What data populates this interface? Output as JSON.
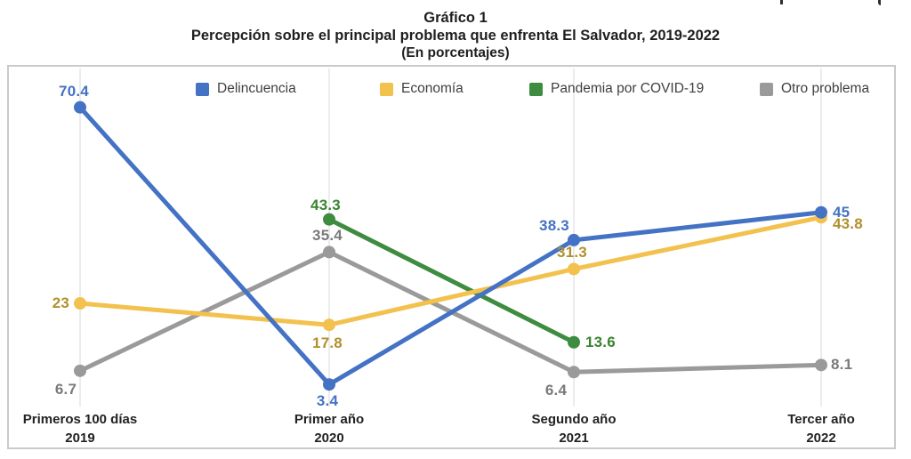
{
  "title": {
    "line1": "Gráfico 1",
    "line2": "Percepción sobre el principal problema que enfrenta El Salvador, 2019-2022",
    "line3": "(En porcentajes)"
  },
  "chart_data": {
    "type": "line",
    "title": "Percepción sobre el principal problema que enfrenta El Salvador, 2019-2022",
    "subtitle": "(En porcentajes)",
    "ylabel": "",
    "xlabel": "",
    "ylim": [
      0,
      80
    ],
    "grid": "vertical-only",
    "legend_position": "top",
    "categories": [
      {
        "label": "Primeros 100 días",
        "year": "2019"
      },
      {
        "label": "Primer año",
        "year": "2020"
      },
      {
        "label": "Segundo año",
        "year": "2021"
      },
      {
        "label": "Tercer año",
        "year": "2022"
      }
    ],
    "series": [
      {
        "name": "Delincuencia",
        "color": "#4472C4",
        "label_color": "#4472C4",
        "points": [
          {
            "category_index": 0,
            "value": 70.4,
            "label": "70.4",
            "label_pos": "above",
            "dx": -7,
            "dy": 0
          },
          {
            "category_index": 1,
            "value": 3.4,
            "label": "3.4",
            "label_pos": "below",
            "dx": -2,
            "dy": -2
          },
          {
            "category_index": 2,
            "value": 38.3,
            "label": "38.3",
            "label_pos": "above",
            "dx": -22,
            "dy": 2
          },
          {
            "category_index": 3,
            "value": 45,
            "label": "45",
            "label_pos": "right",
            "dx": 0,
            "dy": 0
          }
        ]
      },
      {
        "name": "Economía",
        "color": "#F2C14E",
        "label_color": "#B0902D",
        "points": [
          {
            "category_index": 0,
            "value": 23,
            "label": "23",
            "label_pos": "left",
            "dx": 0,
            "dy": 0
          },
          {
            "category_index": 1,
            "value": 17.8,
            "label": "17.8",
            "label_pos": "below",
            "dx": -2,
            "dy": 0
          },
          {
            "category_index": 2,
            "value": 31.3,
            "label": "31.3",
            "label_pos": "above",
            "dx": -2,
            "dy": 0
          },
          {
            "category_index": 3,
            "value": 43.8,
            "label": "43.8",
            "label_pos": "right",
            "dx": 0,
            "dy": 8
          }
        ]
      },
      {
        "name": "Pandemia por COVID-19",
        "color": "#3D8C40",
        "label_color": "#38842F",
        "points": [
          {
            "category_index": 1,
            "value": 43.3,
            "label": "43.3",
            "label_pos": "above",
            "dx": -4,
            "dy": 2
          },
          {
            "category_index": 2,
            "value": 13.6,
            "label": "13.6",
            "label_pos": "right",
            "dx": 0,
            "dy": 0
          }
        ]
      },
      {
        "name": "Otro problema",
        "color": "#9A9A9A",
        "label_color": "#7a7a7a",
        "points": [
          {
            "category_index": 0,
            "value": 6.7,
            "label": "6.7",
            "label_pos": "below",
            "dx": -16,
            "dy": 0
          },
          {
            "category_index": 1,
            "value": 35.4,
            "label": "35.4",
            "label_pos": "above",
            "dx": -2,
            "dy": 0
          },
          {
            "category_index": 2,
            "value": 6.4,
            "label": "6.4",
            "label_pos": "below",
            "dx": -20,
            "dy": 0
          },
          {
            "category_index": 3,
            "value": 8.1,
            "label": "8.1",
            "label_pos": "right",
            "dx": -2,
            "dy": 0
          }
        ]
      }
    ]
  }
}
